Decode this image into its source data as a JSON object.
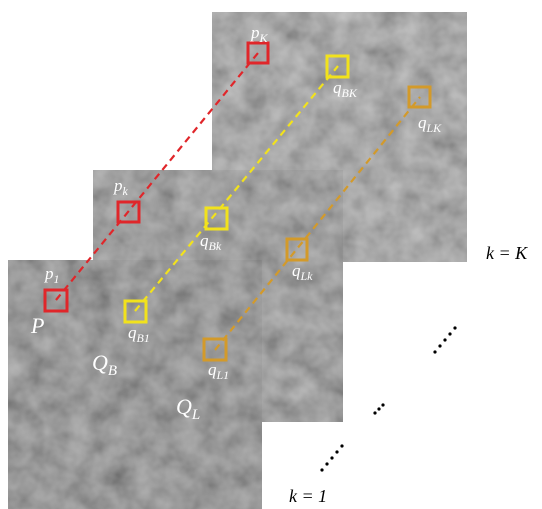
{
  "back_panel": {
    "p": {
      "base": "p",
      "sub": "K"
    },
    "qb": {
      "base": "q",
      "sub": "BK"
    },
    "ql": {
      "base": "q",
      "sub": "LK"
    },
    "k_label": "k = K"
  },
  "middle_panel": {
    "p": {
      "base": "p",
      "sub": "k"
    },
    "qb": {
      "base": "q",
      "sub": "Bk"
    },
    "ql": {
      "base": "q",
      "sub": "Lk"
    }
  },
  "front_panel": {
    "p": {
      "base": "p",
      "sub": "1"
    },
    "qb": {
      "base": "q",
      "sub": "B1"
    },
    "ql": {
      "base": "q",
      "sub": "L1"
    },
    "region_p": "P",
    "region_qb": {
      "base": "Q",
      "sub": "B"
    },
    "region_ql": {
      "base": "Q",
      "sub": "L"
    },
    "k_label": "k = 1"
  }
}
